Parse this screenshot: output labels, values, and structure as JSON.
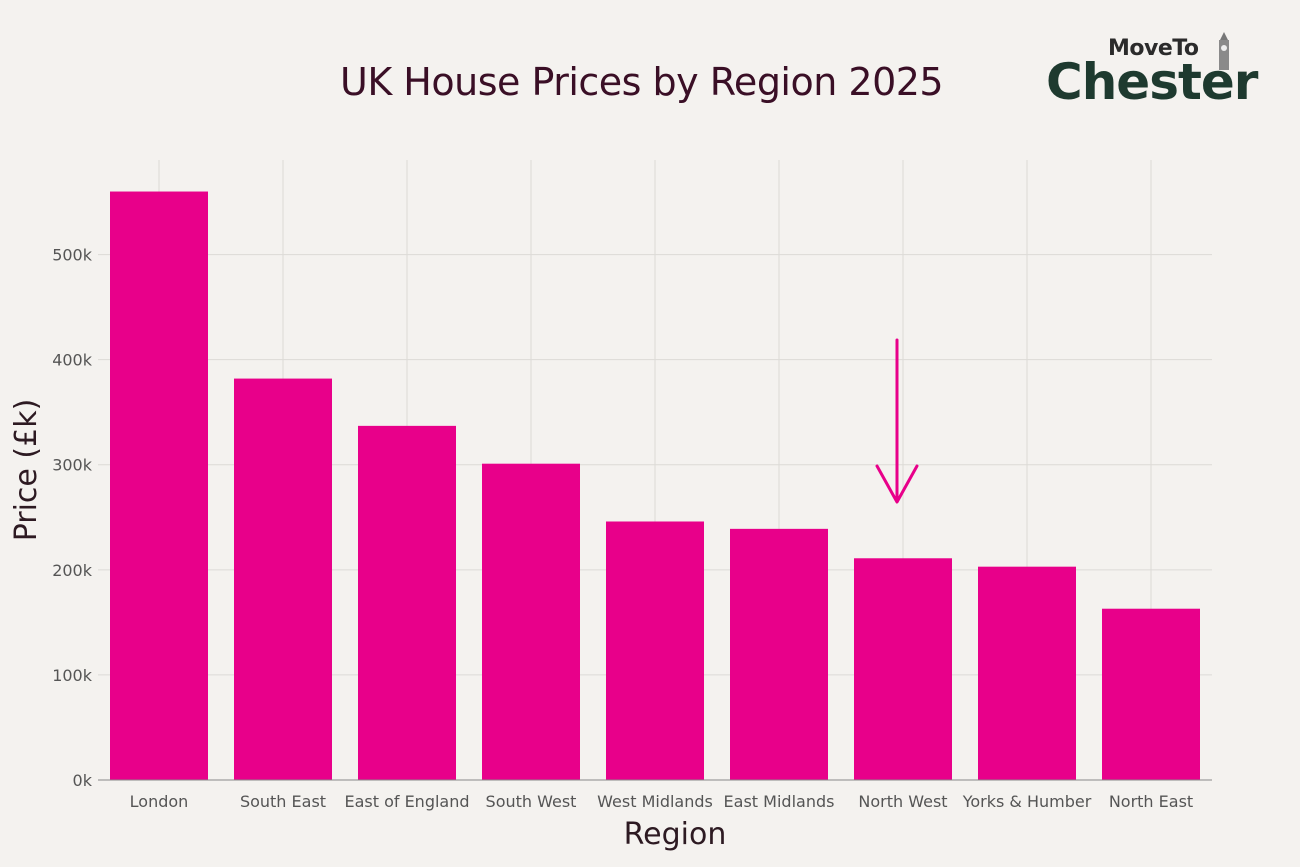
{
  "chart_data": {
    "type": "bar",
    "title": "UK House Prices by Region 2025",
    "xlabel": "Region",
    "ylabel": "Price (£k)",
    "categories": [
      "London",
      "South East",
      "East of England",
      "South West",
      "West Midlands",
      "East Midlands",
      "North West",
      "Yorks & Humber",
      "North East"
    ],
    "values": [
      560,
      382,
      337,
      301,
      246,
      239,
      211,
      203,
      163
    ],
    "ylim": [
      0,
      590
    ],
    "yticks": [
      0,
      100,
      200,
      300,
      400,
      500
    ],
    "ytick_labels": [
      "0k",
      "100k",
      "200k",
      "300k",
      "400k",
      "500k"
    ],
    "grid": true,
    "bar_color": "#e8008a",
    "annotation": {
      "type": "arrow",
      "target_category": "North West",
      "color": "#e8008a"
    }
  },
  "logo": {
    "top_text": "MoveTo",
    "main_text": "Chester"
  }
}
